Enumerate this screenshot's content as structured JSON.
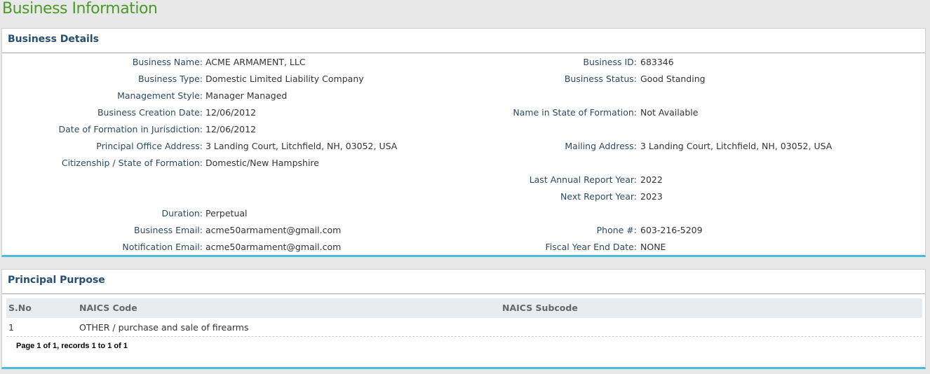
{
  "page_title": "Business Information",
  "details": {
    "header": "Business Details",
    "rows": [
      {
        "l": "Business Name:",
        "lv": "ACME ARMAMENT, LLC",
        "r": "Business ID:",
        "rv": "683346"
      },
      {
        "l": "Business Type:",
        "lv": "Domestic Limited Liability Company",
        "r": "Business Status:",
        "rv": "Good Standing"
      },
      {
        "l": "Management Style:",
        "lv": "Manager Managed"
      },
      {
        "l": "Business Creation Date:",
        "lv": "12/06/2012",
        "r": "Name in State of Formation:",
        "rv": "Not Available"
      },
      {
        "l": "Date of Formation in Jurisdiction:",
        "lv": "12/06/2012"
      },
      {
        "l": "Principal Office Address:",
        "lv": "3 Landing Court, Litchfield, NH, 03052, USA",
        "r": "Mailing Address:",
        "rv": "3 Landing Court, Litchfield, NH, 03052, USA"
      },
      {
        "l": "Citizenship / State of Formation:",
        "lv": "Domestic/New Hampshire"
      },
      {
        "r": "Last Annual Report Year:",
        "rv": "2022"
      },
      {
        "r": "Next Report Year:",
        "rv": "2023"
      },
      {
        "l": "Duration:",
        "lv": "Perpetual"
      },
      {
        "l": "Business Email:",
        "lv": "acme50armament@gmail.com",
        "r": "Phone #:",
        "rv": "603-216-5209"
      },
      {
        "l": "Notification Email:",
        "lv": "acme50armament@gmail.com",
        "r": "Fiscal Year End Date:",
        "rv": "NONE"
      }
    ]
  },
  "purpose": {
    "header": "Principal Purpose",
    "columns": [
      "S.No",
      "NAICS Code",
      "NAICS Subcode"
    ],
    "rows": [
      {
        "sno": "1",
        "code": "OTHER / purchase and sale of firearms",
        "sub": ""
      }
    ],
    "pagination": "Page 1 of 1, records 1 to 1 of 1"
  }
}
